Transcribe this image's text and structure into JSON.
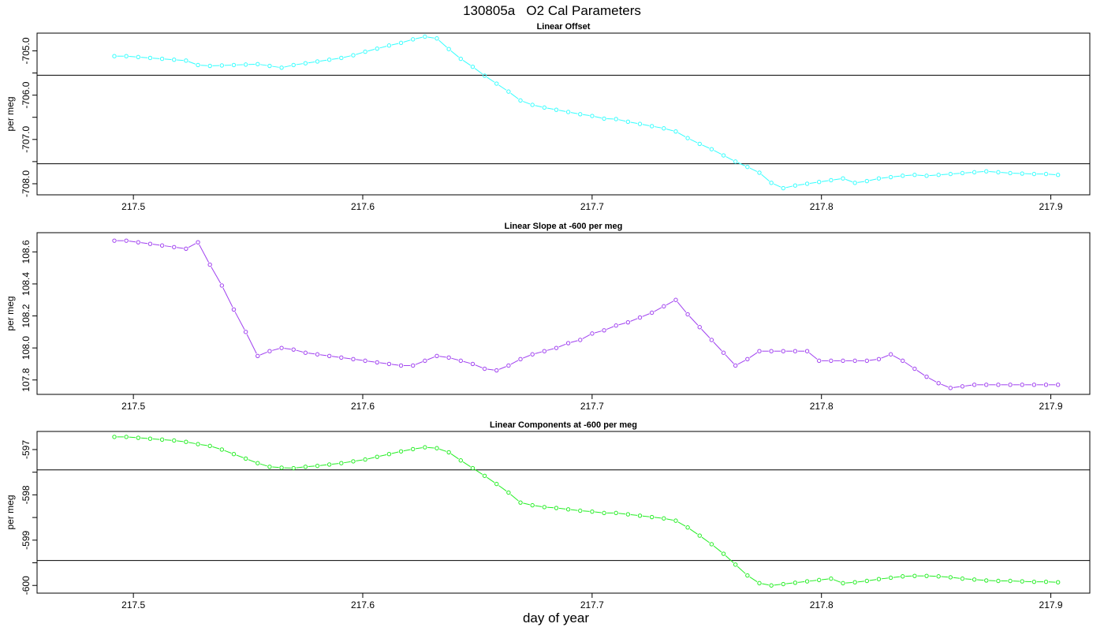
{
  "title": "130805a   O2 Cal Parameters",
  "xlabel": "day of year",
  "colors": {
    "offset": "#33ffff",
    "slope": "#a040f0",
    "components": "#22ee22",
    "axis": "#000000"
  },
  "chart_data": [
    {
      "type": "line",
      "title": "Linear Offset",
      "ylabel": "per meg",
      "xlim": [
        217.458,
        217.917
      ],
      "ylim": [
        -708.25,
        -704.6
      ],
      "yticks": [
        -705.0,
        -705.5,
        -706.0,
        -706.5,
        -707.0,
        -707.5,
        -708.0
      ],
      "ytick_labels": [
        "-705.0",
        "",
        "-706.0",
        "",
        "-707.0",
        "",
        "-708.0"
      ],
      "hlines": [
        -705.55,
        -707.55
      ],
      "xticks": [
        217.5,
        217.6,
        217.7,
        217.8,
        217.9
      ],
      "xtick_labels": [
        "217.5",
        "217.6",
        "217.7",
        "217.8",
        "217.9"
      ],
      "x_start": 217.4917,
      "x_step": 0.005208,
      "values": [
        -705.12,
        -705.12,
        -705.14,
        -705.16,
        -705.18,
        -705.2,
        -705.22,
        -705.32,
        -705.34,
        -705.33,
        -705.32,
        -705.31,
        -705.3,
        -705.34,
        -705.38,
        -705.32,
        -705.28,
        -705.24,
        -705.2,
        -705.16,
        -705.1,
        -705.02,
        -704.95,
        -704.88,
        -704.82,
        -704.74,
        -704.68,
        -704.72,
        -704.96,
        -705.18,
        -705.36,
        -705.56,
        -705.74,
        -705.92,
        -706.12,
        -706.22,
        -706.28,
        -706.33,
        -706.38,
        -706.43,
        -706.47,
        -706.53,
        -706.54,
        -706.6,
        -706.65,
        -706.7,
        -706.75,
        -706.82,
        -706.97,
        -707.1,
        -707.22,
        -707.36,
        -707.5,
        -707.62,
        -707.75,
        -707.98,
        -708.1,
        -708.04,
        -708.0,
        -707.96,
        -707.92,
        -707.88,
        -707.98,
        -707.94,
        -707.88,
        -707.85,
        -707.82,
        -707.8,
        -707.82,
        -707.8,
        -707.78,
        -707.76,
        -707.74,
        -707.72,
        -707.74,
        -707.76,
        -707.77,
        -707.78,
        -707.78,
        -707.8
      ]
    },
    {
      "type": "line",
      "title": "Linear Slope at -600 per meg",
      "ylabel": "per meg",
      "xlim": [
        217.458,
        217.917
      ],
      "ylim": [
        107.71,
        108.72
      ],
      "yticks": [
        107.8,
        108.0,
        108.2,
        108.4,
        108.6
      ],
      "ytick_labels": [
        "107.8",
        "108.0",
        "108.2",
        "108.4",
        "108.6"
      ],
      "hlines": [],
      "xticks": [
        217.5,
        217.6,
        217.7,
        217.8,
        217.9
      ],
      "xtick_labels": [
        "217.5",
        "217.6",
        "217.7",
        "217.8",
        "217.9"
      ],
      "x_start": 217.4917,
      "x_step": 0.005208,
      "values": [
        108.67,
        108.67,
        108.66,
        108.65,
        108.64,
        108.63,
        108.62,
        108.66,
        108.52,
        108.39,
        108.24,
        108.1,
        107.95,
        107.98,
        108.0,
        107.99,
        107.97,
        107.96,
        107.95,
        107.94,
        107.93,
        107.92,
        107.91,
        107.9,
        107.89,
        107.89,
        107.92,
        107.95,
        107.94,
        107.92,
        107.9,
        107.87,
        107.86,
        107.89,
        107.93,
        107.96,
        107.98,
        108.0,
        108.03,
        108.05,
        108.09,
        108.11,
        108.14,
        108.16,
        108.19,
        108.22,
        108.26,
        108.3,
        108.21,
        108.13,
        108.05,
        107.97,
        107.89,
        107.93,
        107.98,
        107.98,
        107.98,
        107.98,
        107.98,
        107.92,
        107.92,
        107.92,
        107.92,
        107.92,
        107.93,
        107.96,
        107.92,
        107.87,
        107.82,
        107.78,
        107.75,
        107.76,
        107.77,
        107.77,
        107.77,
        107.77,
        107.77,
        107.77,
        107.77,
        107.77
      ]
    },
    {
      "type": "line",
      "title": "Linear Components at -600 per meg",
      "ylabel": "per meg",
      "xlim": [
        217.458,
        217.917
      ],
      "ylim": [
        -600.17,
        -596.6
      ],
      "yticks": [
        -597,
        -597.5,
        -598,
        -598.5,
        -599,
        -599.5,
        -600
      ],
      "ytick_labels": [
        "-597",
        "",
        "-598",
        "",
        "-599",
        "",
        "-600"
      ],
      "hlines": [
        -597.45,
        -599.45
      ],
      "xticks": [
        217.5,
        217.6,
        217.7,
        217.8,
        217.9
      ],
      "xtick_labels": [
        "217.5",
        "217.6",
        "217.7",
        "217.8",
        "217.9"
      ],
      "x_start": 217.4917,
      "x_step": 0.005208,
      "values": [
        -596.72,
        -596.72,
        -596.74,
        -596.76,
        -596.78,
        -596.8,
        -596.83,
        -596.88,
        -596.92,
        -597.0,
        -597.1,
        -597.2,
        -597.3,
        -597.38,
        -597.4,
        -597.41,
        -597.38,
        -597.36,
        -597.33,
        -597.3,
        -597.26,
        -597.22,
        -597.16,
        -597.1,
        -597.04,
        -596.99,
        -596.95,
        -596.97,
        -597.06,
        -597.24,
        -597.41,
        -597.58,
        -597.76,
        -597.95,
        -598.17,
        -598.23,
        -598.27,
        -598.29,
        -598.32,
        -598.35,
        -598.37,
        -598.4,
        -598.4,
        -598.43,
        -598.46,
        -598.49,
        -598.52,
        -598.57,
        -598.72,
        -598.9,
        -599.09,
        -599.3,
        -599.54,
        -599.78,
        -599.95,
        -600.0,
        -599.97,
        -599.94,
        -599.91,
        -599.88,
        -599.85,
        -599.95,
        -599.93,
        -599.9,
        -599.86,
        -599.83,
        -599.8,
        -599.79,
        -599.79,
        -599.8,
        -599.82,
        -599.85,
        -599.87,
        -599.89,
        -599.9,
        -599.9,
        -599.91,
        -599.92,
        -599.92,
        -599.93
      ]
    }
  ]
}
